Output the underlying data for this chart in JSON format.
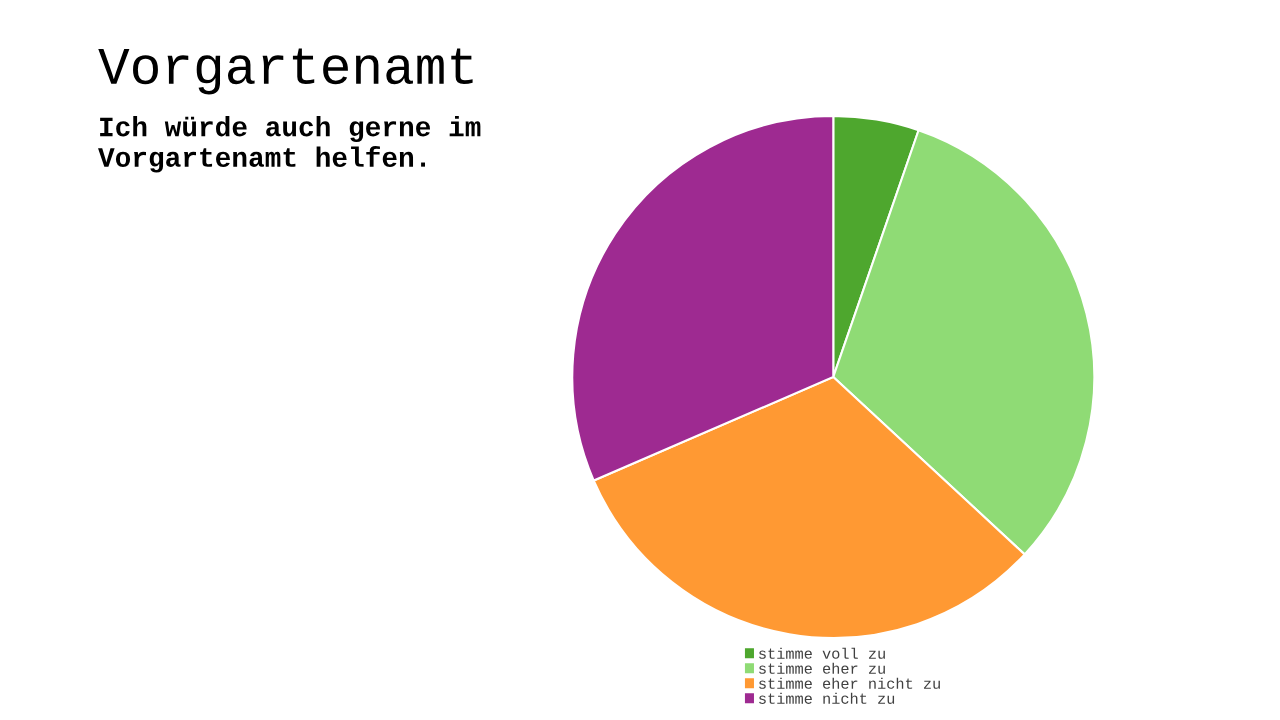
{
  "chart_data": {
    "type": "pie",
    "title": "Vorgartenamt",
    "subtitle": "Ich würde auch gerne im Vorgartenamt helfen.",
    "categories": [
      "stimme voll zu",
      "stimme eher zu",
      "stimme eher nicht zu",
      "stimme nicht zu"
    ],
    "values": [
      5.3,
      31.6,
      31.6,
      31.5
    ],
    "colors": [
      "#4ea72e",
      "#8fdb75",
      "#ff9933",
      "#9e2a91"
    ],
    "legend": "bottom"
  }
}
